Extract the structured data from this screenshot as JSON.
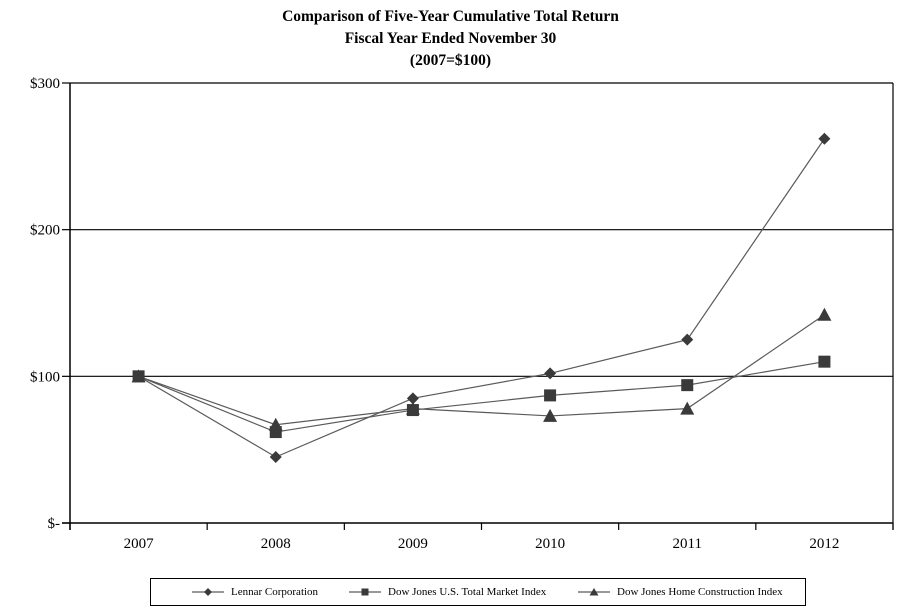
{
  "title": {
    "line1": "Comparison of Five-Year Cumulative Total Return",
    "line2": "Fiscal Year Ended November 30",
    "line3": "(2007=$100)"
  },
  "chart_data": {
    "type": "line",
    "categories": [
      "2007",
      "2008",
      "2009",
      "2010",
      "2011",
      "2012"
    ],
    "series": [
      {
        "name": "Lennar Corporation",
        "marker": "diamond",
        "values": [
          100,
          45,
          85,
          102,
          125,
          262
        ]
      },
      {
        "name": "Dow Jones U.S. Total Market Index",
        "marker": "square",
        "values": [
          100,
          62,
          77,
          87,
          94,
          110
        ]
      },
      {
        "name": "Dow Jones Home Construction Index",
        "marker": "triangle",
        "values": [
          100,
          67,
          78,
          73,
          78,
          142
        ]
      }
    ],
    "ylim": [
      0,
      300
    ],
    "y_ticks": [
      {
        "value": 0,
        "label": "$-"
      },
      {
        "value": 100,
        "label": "$100"
      },
      {
        "value": 200,
        "label": "$200"
      },
      {
        "value": 300,
        "label": "$300"
      }
    ],
    "grid": "horizontal gridlines at each $100",
    "legend_position": "bottom",
    "colors": {
      "line": "#5a5a5a",
      "marker": "#3a3a3a",
      "axis": "#000000"
    }
  }
}
